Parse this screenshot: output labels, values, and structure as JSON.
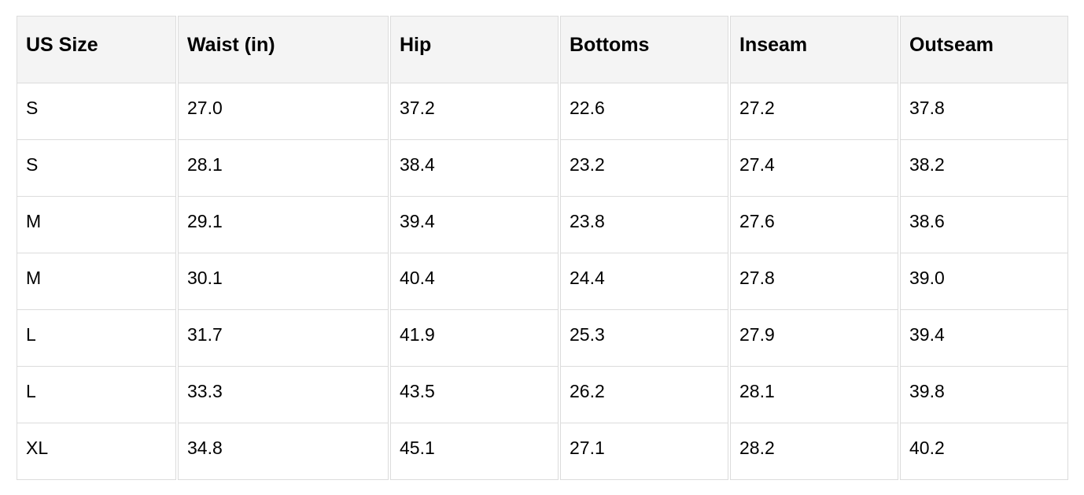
{
  "table": {
    "headers": [
      "US Size",
      "Waist (in)",
      "Hip",
      "Bottoms",
      "Inseam",
      "Outseam"
    ],
    "rows": [
      [
        "S",
        "27.0",
        "37.2",
        "22.6",
        "27.2",
        "37.8"
      ],
      [
        "S",
        "28.1",
        "38.4",
        "23.2",
        "27.4",
        "38.2"
      ],
      [
        "M",
        "29.1",
        "39.4",
        "23.8",
        "27.6",
        "38.6"
      ],
      [
        "M",
        "30.1",
        "40.4",
        "24.4",
        "27.8",
        "39.0"
      ],
      [
        "L",
        "31.7",
        "41.9",
        "25.3",
        "27.9",
        "39.4"
      ],
      [
        "L",
        "33.3",
        "43.5",
        "26.2",
        "28.1",
        "39.8"
      ],
      [
        "XL",
        "34.8",
        "45.1",
        "27.1",
        "28.2",
        "40.2"
      ]
    ]
  },
  "colors": {
    "header_bg": "#f4f4f4",
    "border": "#dcdcdc"
  }
}
